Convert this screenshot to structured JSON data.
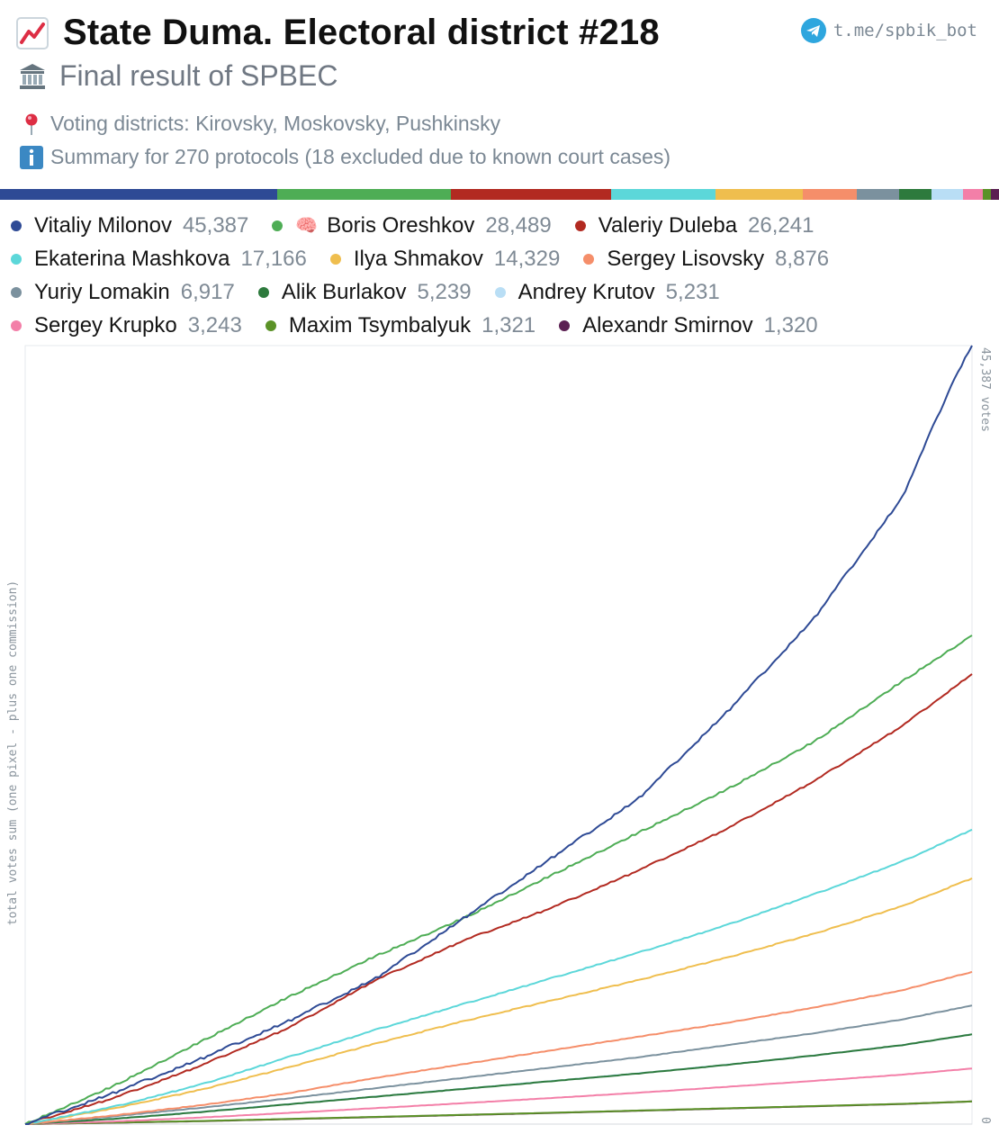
{
  "header": {
    "title": "State Duma. Electoral district #218",
    "subtitle": "Final result of SPBEC",
    "bot_link": "t.me/spbik_bot",
    "districts": "Voting districts: Kirovsky, Moskovsky, Pushkinsky",
    "summary": "Summary for 270 protocols (18 excluded due to known court cases)",
    "icons": {
      "title": "chart-increasing-icon",
      "subtitle": "classical-building-icon",
      "bot": "telegram-icon",
      "districts": "round-pushpin-icon",
      "summary": "information-icon"
    }
  },
  "chart_data": {
    "type": "line",
    "ylabel": "total votes sum (one pixel - plus one commission)",
    "yaxis_right_top": "45,387 votes",
    "yaxis_right_bottom": "0",
    "ylim": [
      0,
      45387
    ],
    "x_count": 270,
    "series": [
      {
        "name": "Vitaliy Milonov",
        "total": 45387,
        "total_label": "45,387",
        "color": "#2e4a95",
        "brain": false,
        "checkpoints": [
          [
            0,
            0
          ],
          [
            25,
            1800
          ],
          [
            50,
            3800
          ],
          [
            75,
            6000
          ],
          [
            100,
            8500
          ],
          [
            125,
            12000
          ],
          [
            150,
            15500
          ],
          [
            175,
            19000
          ],
          [
            200,
            24000
          ],
          [
            225,
            29500
          ],
          [
            250,
            36500
          ],
          [
            265,
            43500
          ],
          [
            270,
            45387
          ]
        ]
      },
      {
        "name": "Boris Oreshkov",
        "total": 28489,
        "total_label": "28,489",
        "color": "#4ead55",
        "brain": true,
        "checkpoints": [
          [
            0,
            0
          ],
          [
            25,
            2200
          ],
          [
            50,
            4800
          ],
          [
            75,
            7400
          ],
          [
            100,
            9800
          ],
          [
            125,
            12000
          ],
          [
            150,
            14500
          ],
          [
            175,
            17000
          ],
          [
            200,
            19500
          ],
          [
            225,
            22300
          ],
          [
            250,
            25800
          ],
          [
            270,
            28489
          ]
        ]
      },
      {
        "name": "Valeriy Duleba",
        "total": 26241,
        "total_label": "26,241",
        "color": "#b22a21",
        "brain": false,
        "checkpoints": [
          [
            0,
            0
          ],
          [
            25,
            1500
          ],
          [
            50,
            3400
          ],
          [
            75,
            5600
          ],
          [
            100,
            8400
          ],
          [
            125,
            10700
          ],
          [
            150,
            12600
          ],
          [
            175,
            14800
          ],
          [
            200,
            17200
          ],
          [
            225,
            20000
          ],
          [
            250,
            23200
          ],
          [
            270,
            26241
          ]
        ]
      },
      {
        "name": "Ekaterina Mashkova",
        "total": 17166,
        "total_label": "17,166",
        "color": "#5cd7d9",
        "brain": false,
        "checkpoints": [
          [
            0,
            0
          ],
          [
            25,
            1000
          ],
          [
            50,
            2300
          ],
          [
            75,
            3900
          ],
          [
            100,
            5500
          ],
          [
            125,
            7000
          ],
          [
            150,
            8500
          ],
          [
            175,
            10000
          ],
          [
            200,
            11600
          ],
          [
            225,
            13400
          ],
          [
            250,
            15300
          ],
          [
            270,
            17166
          ]
        ]
      },
      {
        "name": "Ilya Shmakov",
        "total": 14329,
        "total_label": "14,329",
        "color": "#efbe4e",
        "brain": false,
        "checkpoints": [
          [
            0,
            0
          ],
          [
            25,
            900
          ],
          [
            50,
            2000
          ],
          [
            75,
            3300
          ],
          [
            100,
            4700
          ],
          [
            125,
            6000
          ],
          [
            150,
            7200
          ],
          [
            175,
            8400
          ],
          [
            200,
            9700
          ],
          [
            225,
            11100
          ],
          [
            250,
            12700
          ],
          [
            270,
            14329
          ]
        ]
      },
      {
        "name": "Sergey Lisovsky",
        "total": 8876,
        "total_label": "8,876",
        "color": "#f58e6a",
        "brain": false,
        "checkpoints": [
          [
            0,
            0
          ],
          [
            25,
            500
          ],
          [
            50,
            1100
          ],
          [
            75,
            1800
          ],
          [
            100,
            2700
          ],
          [
            125,
            3500
          ],
          [
            150,
            4300
          ],
          [
            175,
            5100
          ],
          [
            200,
            5900
          ],
          [
            225,
            6800
          ],
          [
            250,
            7800
          ],
          [
            270,
            8876
          ]
        ]
      },
      {
        "name": "Yuriy Lomakin",
        "total": 6917,
        "total_label": "6,917",
        "color": "#7b919e",
        "brain": false,
        "checkpoints": [
          [
            0,
            0
          ],
          [
            25,
            450
          ],
          [
            50,
            950
          ],
          [
            75,
            1500
          ],
          [
            100,
            2100
          ],
          [
            125,
            2700
          ],
          [
            150,
            3300
          ],
          [
            175,
            3900
          ],
          [
            200,
            4600
          ],
          [
            225,
            5300
          ],
          [
            250,
            6100
          ],
          [
            270,
            6917
          ]
        ]
      },
      {
        "name": "Alik Burlakov",
        "total": 5239,
        "total_label": "5,239",
        "color": "#2d7a3d",
        "brain": false,
        "checkpoints": [
          [
            0,
            0
          ],
          [
            25,
            300
          ],
          [
            50,
            700
          ],
          [
            75,
            1150
          ],
          [
            100,
            1600
          ],
          [
            125,
            2050
          ],
          [
            150,
            2500
          ],
          [
            175,
            2950
          ],
          [
            200,
            3450
          ],
          [
            225,
            4000
          ],
          [
            250,
            4600
          ],
          [
            270,
            5239
          ]
        ]
      },
      {
        "name": "Andrey Krutov",
        "total": 5231,
        "total_label": "5,231",
        "color": "#b9def5",
        "brain": false,
        "checkpoints": [
          [
            0,
            0
          ],
          [
            25,
            320
          ],
          [
            50,
            720
          ],
          [
            75,
            1160
          ],
          [
            100,
            1610
          ],
          [
            125,
            2060
          ],
          [
            150,
            2510
          ],
          [
            175,
            2960
          ],
          [
            200,
            3460
          ],
          [
            225,
            4000
          ],
          [
            250,
            4600
          ],
          [
            270,
            5231
          ]
        ]
      },
      {
        "name": "Sergey Krupko",
        "total": 3243,
        "total_label": "3,243",
        "color": "#f37fa8",
        "brain": false,
        "checkpoints": [
          [
            0,
            0
          ],
          [
            25,
            150
          ],
          [
            50,
            380
          ],
          [
            75,
            650
          ],
          [
            100,
            930
          ],
          [
            125,
            1220
          ],
          [
            150,
            1520
          ],
          [
            175,
            1830
          ],
          [
            200,
            2170
          ],
          [
            225,
            2520
          ],
          [
            250,
            2880
          ],
          [
            270,
            3243
          ]
        ]
      },
      {
        "name": "Maxim Tsymbalyuk",
        "total": 1321,
        "total_label": "1,321",
        "color": "#5b9227",
        "brain": false,
        "checkpoints": [
          [
            0,
            0
          ],
          [
            50,
            180
          ],
          [
            100,
            420
          ],
          [
            150,
            660
          ],
          [
            200,
            920
          ],
          [
            250,
            1180
          ],
          [
            270,
            1321
          ]
        ]
      },
      {
        "name": "Alexandr Smirnov",
        "total": 1320,
        "total_label": "1,320",
        "color": "#5b1f52",
        "brain": false,
        "checkpoints": [
          [
            0,
            0
          ],
          [
            50,
            170
          ],
          [
            100,
            410
          ],
          [
            150,
            650
          ],
          [
            200,
            910
          ],
          [
            250,
            1170
          ],
          [
            270,
            1320
          ]
        ]
      }
    ]
  }
}
